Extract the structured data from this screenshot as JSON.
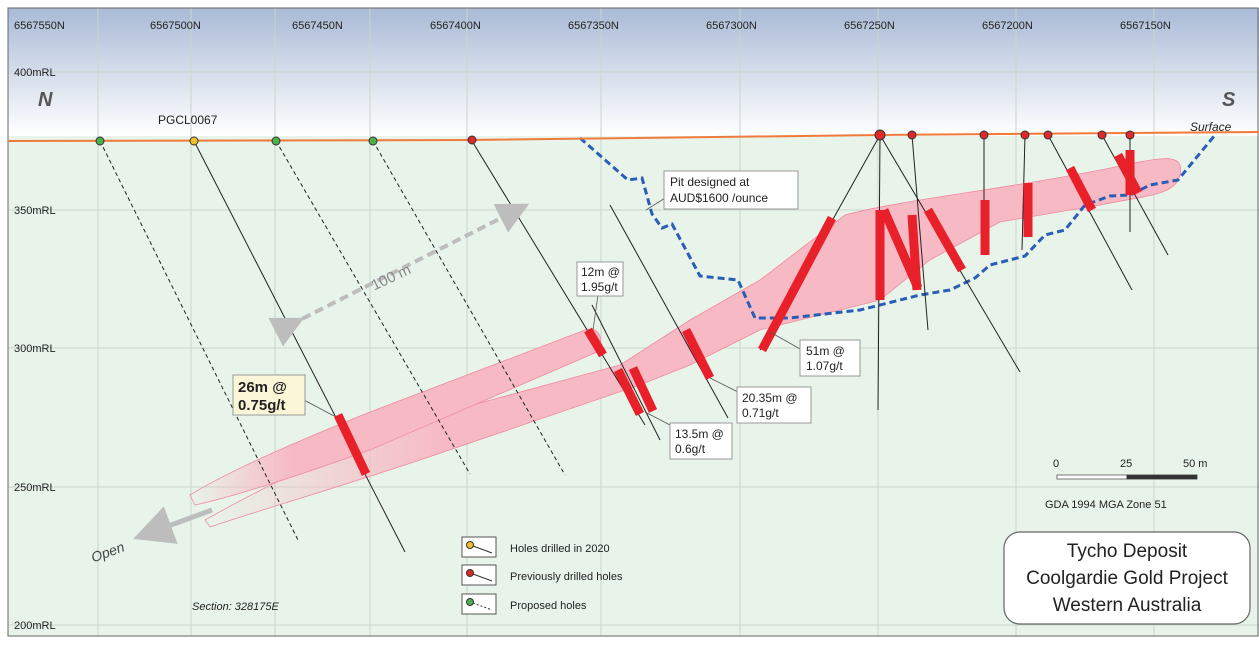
{
  "axes": {
    "northings": [
      "6567550N",
      "6567500N",
      "6567450N",
      "6567400N",
      "6567350N",
      "6567300N",
      "6567250N",
      "6567200N",
      "6567150N"
    ],
    "rl_labels": [
      "400mRL",
      "350mRL",
      "300mRL",
      "250mRL",
      "200mRL"
    ]
  },
  "labels": {
    "north": "N",
    "south": "S",
    "surface": "Surface",
    "hole_name": "PGCL0067",
    "distance": "100 m",
    "open": "Open",
    "section": "Section: 328175E"
  },
  "intercepts": [
    {
      "line1": "26m @",
      "line2": "0.75g/t"
    },
    {
      "line1": "12m @",
      "line2": "1.95g/t"
    },
    {
      "line1": "13.5m @",
      "line2": "0.6g/t"
    },
    {
      "line1": "20.35m @",
      "line2": "0.71g/t"
    },
    {
      "line1": "51m @",
      "line2": "1.07g/t"
    }
  ],
  "pit": {
    "line1": "Pit designed at",
    "line2": "AUD$1600 /ounce"
  },
  "legend": {
    "items": [
      {
        "label": "Holes drilled in 2020",
        "color": "#f2c12e"
      },
      {
        "label": "Previously drilled holes",
        "color": "#e02a2a"
      },
      {
        "label": "Proposed holes",
        "color": "#4caf50"
      }
    ]
  },
  "scale": {
    "ticks": [
      "0",
      "25",
      "50 m"
    ],
    "projection": "GDA 1994 MGA Zone 51"
  },
  "title": {
    "line1": "Tycho Deposit",
    "line2": "Coolgardie Gold Project",
    "line3": "Western Australia"
  },
  "colors": {
    "sky_top": "#aebfd8",
    "ground": "#e8f4ea",
    "surface_line": "#f07a3a",
    "orebody": "#f7b9c3",
    "intercept": "#e8202a",
    "pit": "#2a5db8"
  }
}
